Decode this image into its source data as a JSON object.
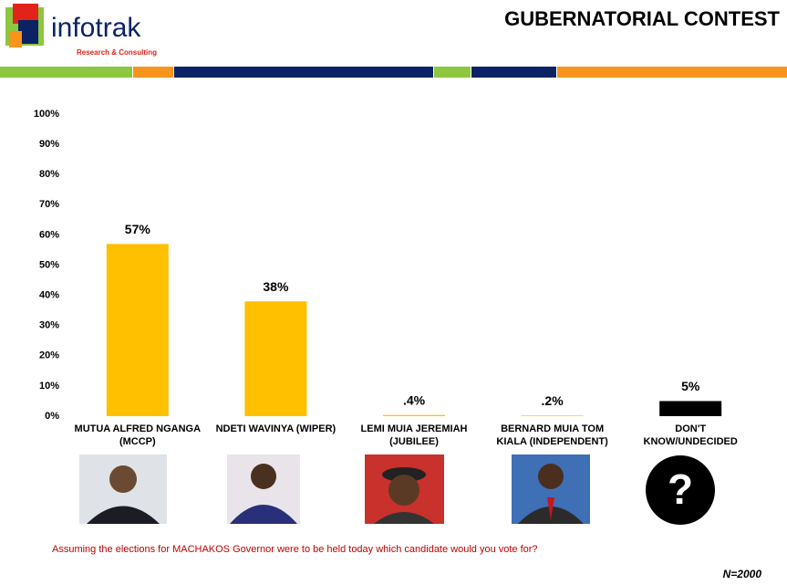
{
  "logo": {
    "name": "infotrak",
    "tagline": "Research & Consulting"
  },
  "undecided_icon_text": "?",
  "chart_data": {
    "type": "bar",
    "title": "GUBERNATORIAL CONTEST",
    "categories": [
      "MUTUA ALFRED NGANGA (MCCP)",
      "NDETI WAVINYA (WIPER)",
      "LEMI MUIA JEREMIAH (JUBILEE)",
      "BERNARD MUIA TOM KIALA (INDEPENDENT)",
      "DON'T KNOW/UNDECIDED"
    ],
    "values": [
      57,
      38,
      0.4,
      0.2,
      5
    ],
    "value_labels": [
      "57%",
      "38%",
      ".4%",
      ".2%",
      "5%"
    ],
    "colors": [
      "#ffc000",
      "#ffc000",
      "#ffc000",
      "#ffc000",
      "#000000"
    ],
    "ylim": [
      0,
      100
    ],
    "yticks": [
      {
        "value": 0,
        "label": "0%"
      },
      {
        "value": 10,
        "label": "10%"
      },
      {
        "value": 20,
        "label": "20%"
      },
      {
        "value": 30,
        "label": "30%"
      },
      {
        "value": 40,
        "label": "40%"
      },
      {
        "value": 50,
        "label": "50%"
      },
      {
        "value": 60,
        "label": "60%"
      },
      {
        "value": 70,
        "label": "70%"
      },
      {
        "value": 80,
        "label": "80%"
      },
      {
        "value": 90,
        "label": "90%"
      },
      {
        "value": 100,
        "label": "100%"
      }
    ],
    "grid": false,
    "question": "Assuming the elections for MACHAKOS Governor were to be held today which candidate would you vote for?",
    "sample_size": "N=2000"
  }
}
